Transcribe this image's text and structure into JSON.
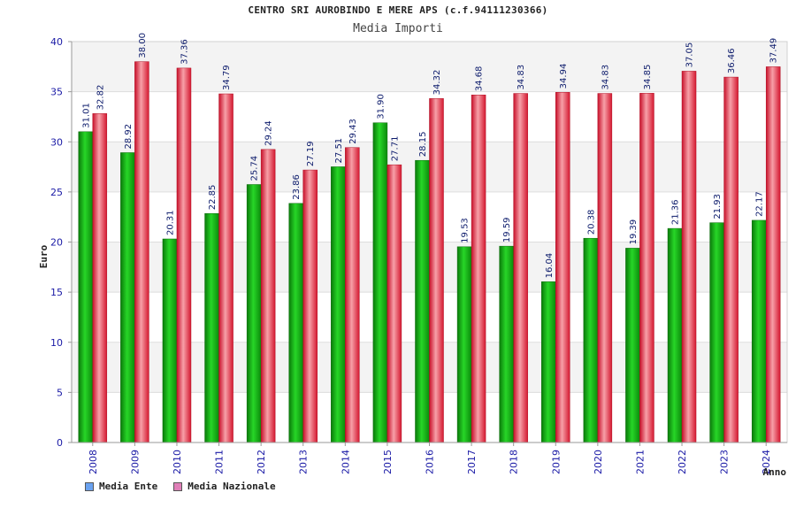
{
  "chart_data": {
    "type": "bar",
    "title": "CENTRO SRI AUROBINDO E MERE APS (c.f.94111230366)",
    "subtitle": "Media Importi",
    "xlabel": "Anno",
    "ylabel": "Euro",
    "ylim": [
      0,
      40
    ],
    "yticks": [
      0,
      5,
      10,
      15,
      20,
      25,
      30,
      35,
      40
    ],
    "grid": true,
    "legend_placement": "bottom-left",
    "categories": [
      "2008",
      "2009",
      "2010",
      "2011",
      "2012",
      "2013",
      "2014",
      "2015",
      "2016",
      "2017",
      "2018",
      "2019",
      "2020",
      "2021",
      "2022",
      "2023",
      "2024"
    ],
    "series": [
      {
        "name": "Media Ente",
        "color": "#1fb41f",
        "legend_color": "#6aa2f0",
        "values": [
          31.01,
          28.92,
          20.31,
          22.85,
          25.74,
          23.86,
          27.51,
          31.9,
          28.15,
          19.53,
          19.59,
          16.04,
          20.38,
          19.39,
          21.36,
          21.93,
          22.17
        ],
        "labels": [
          "31.01",
          "28.92",
          "20.31",
          "22.85",
          "25.74",
          "23.86",
          "27.51",
          "31.90",
          "28.15",
          "19.53",
          "19.59",
          "16.04",
          "20.38",
          "19.39",
          "21.36",
          "21.93",
          "22.17"
        ]
      },
      {
        "name": "Media Nazionale",
        "color": "#e8283c",
        "legend_color": "#e07fb8",
        "values": [
          32.82,
          38.0,
          37.36,
          34.79,
          29.24,
          27.19,
          29.43,
          27.71,
          34.32,
          34.68,
          34.83,
          34.94,
          34.83,
          34.85,
          37.05,
          36.46,
          37.49
        ],
        "labels": [
          "32.82",
          "38.00",
          "37.36",
          "34.79",
          "29.24",
          "27.19",
          "29.43",
          "27.71",
          "34.32",
          "34.68",
          "34.83",
          "34.94",
          "34.83",
          "34.85",
          "37.05",
          "36.46",
          "37.49"
        ]
      }
    ]
  }
}
